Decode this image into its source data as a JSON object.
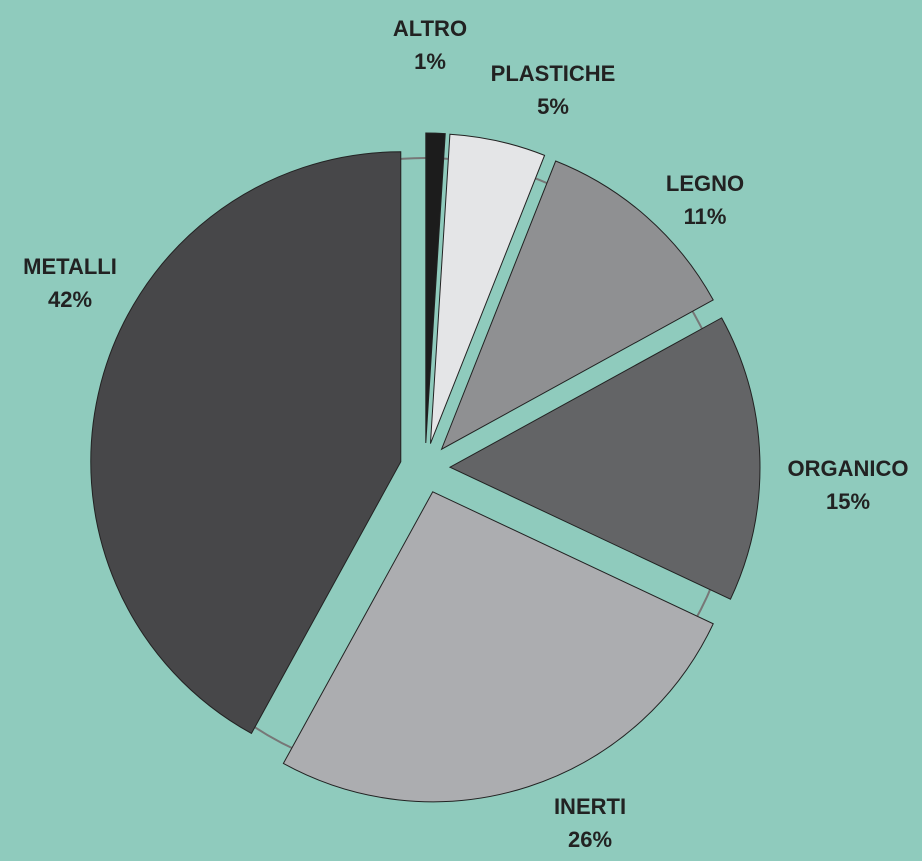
{
  "chart_data": {
    "type": "pie",
    "categories": [
      "ALTRO",
      "PLASTICHE",
      "LEGNO",
      "ORGANICO",
      "INERTI",
      "METALLI"
    ],
    "values": [
      1,
      5,
      11,
      15,
      26,
      42
    ],
    "value_labels": [
      "1%",
      "5%",
      "11%",
      "15%",
      "26%",
      "42%"
    ],
    "colors": [
      "#1c1c1c",
      "#e4e5e7",
      "#8f9092",
      "#636466",
      "#acadb0",
      "#474749"
    ]
  }
}
